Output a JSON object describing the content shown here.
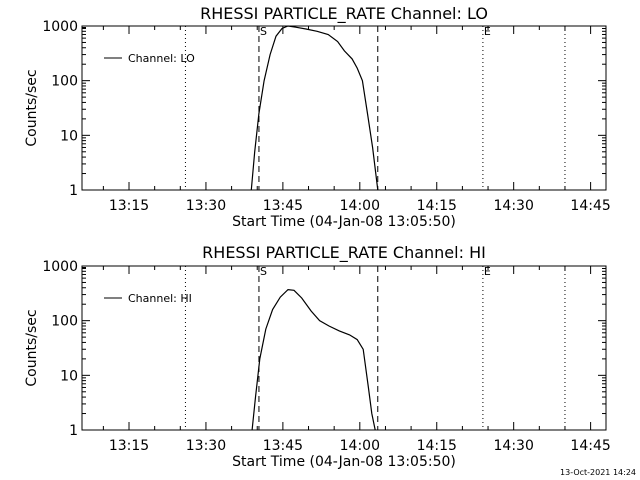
{
  "footer": {
    "stamp": "13-Oct-2021 14:24"
  },
  "chart_data": [
    {
      "type": "line",
      "title": "RHESSI PARTICLE_RATE Channel: LO",
      "xlabel": "Start Time (04-Jan-08 13:05:50)",
      "ylabel": "Counts/sec",
      "yscale": "log",
      "xlim": [
        "13:05:50",
        "14:48:00"
      ],
      "ylim": [
        1,
        1000
      ],
      "x_ticks": [
        "13:15",
        "13:30",
        "13:45",
        "14:00",
        "14:15",
        "14:30",
        "14:45"
      ],
      "y_ticks": [
        "1",
        "10",
        "100",
        "1000"
      ],
      "legend": {
        "position": "top-left",
        "entries": [
          "Channel: LO"
        ]
      },
      "markers": [
        {
          "label": "S",
          "time": "13:40:20",
          "style": "dashed"
        },
        {
          "label": "",
          "time": "14:03:30",
          "style": "dashed"
        },
        {
          "label": "E",
          "time": "14:24:00",
          "style": "dotted"
        },
        {
          "label": "",
          "time": "13:26:00",
          "style": "dotted"
        },
        {
          "label": "",
          "time": "14:40:00",
          "style": "dotted"
        }
      ],
      "series": [
        {
          "name": "Channel: LO",
          "x": [
            "13:38:50",
            "13:39:30",
            "13:40:20",
            "13:41:20",
            "13:42:30",
            "13:43:40",
            "13:44:50",
            "13:46:00",
            "13:47:30",
            "13:49:30",
            "13:51:40",
            "13:53:50",
            "13:55:40",
            "13:57:00",
            "13:58:30",
            "13:59:30",
            "14:00:30",
            "14:01:30",
            "14:02:30",
            "14:03:30"
          ],
          "values": [
            1,
            5,
            25,
            100,
            300,
            650,
            900,
            1000,
            950,
            880,
            800,
            700,
            520,
            350,
            250,
            170,
            100,
            25,
            6,
            1
          ]
        }
      ]
    },
    {
      "type": "line",
      "title": "RHESSI PARTICLE_RATE Channel: HI",
      "xlabel": "Start Time (04-Jan-08 13:05:50)",
      "ylabel": "Counts/sec",
      "yscale": "log",
      "xlim": [
        "13:05:50",
        "14:48:00"
      ],
      "ylim": [
        1,
        1000
      ],
      "x_ticks": [
        "13:15",
        "13:30",
        "13:45",
        "14:00",
        "14:15",
        "14:30",
        "14:45"
      ],
      "y_ticks": [
        "1",
        "10",
        "100",
        "1000"
      ],
      "legend": {
        "position": "top-left",
        "entries": [
          "Channel: HI"
        ]
      },
      "markers": [
        {
          "label": "S",
          "time": "13:40:20",
          "style": "dashed"
        },
        {
          "label": "",
          "time": "14:03:30",
          "style": "dashed"
        },
        {
          "label": "E",
          "time": "14:24:00",
          "style": "dotted"
        },
        {
          "label": "",
          "time": "13:26:00",
          "style": "dotted"
        },
        {
          "label": "",
          "time": "14:40:00",
          "style": "dotted"
        }
      ],
      "series": [
        {
          "name": "Channel: HI",
          "x": [
            "13:39:00",
            "13:39:40",
            "13:40:30",
            "13:41:40",
            "13:43:00",
            "13:44:30",
            "13:46:00",
            "13:47:10",
            "13:48:40",
            "13:50:30",
            "13:52:10",
            "13:54:00",
            "13:56:00",
            "13:58:00",
            "13:59:30",
            "14:00:40",
            "14:01:40",
            "14:02:20",
            "14:03:00"
          ],
          "values": [
            1,
            4,
            20,
            70,
            160,
            270,
            370,
            360,
            260,
            150,
            100,
            80,
            65,
            55,
            45,
            30,
            6,
            2,
            1
          ]
        }
      ]
    }
  ]
}
